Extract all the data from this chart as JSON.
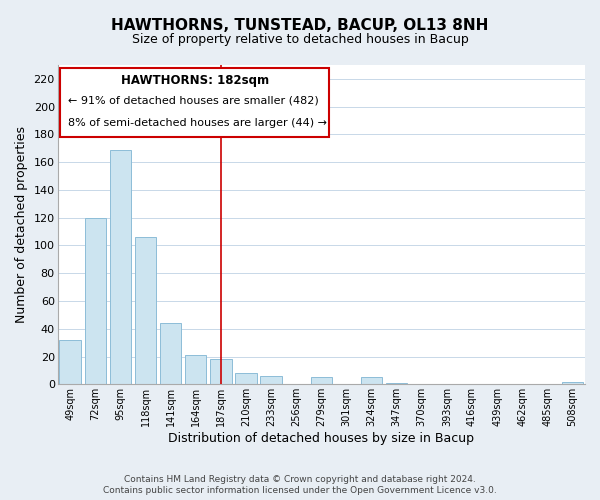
{
  "title": "HAWTHORNS, TUNSTEAD, BACUP, OL13 8NH",
  "subtitle": "Size of property relative to detached houses in Bacup",
  "xlabel": "Distribution of detached houses by size in Bacup",
  "ylabel": "Number of detached properties",
  "bar_labels": [
    "49sqm",
    "72sqm",
    "95sqm",
    "118sqm",
    "141sqm",
    "164sqm",
    "187sqm",
    "210sqm",
    "233sqm",
    "256sqm",
    "279sqm",
    "301sqm",
    "324sqm",
    "347sqm",
    "370sqm",
    "393sqm",
    "416sqm",
    "439sqm",
    "462sqm",
    "485sqm",
    "508sqm"
  ],
  "bar_heights": [
    32,
    120,
    169,
    106,
    44,
    21,
    18,
    8,
    6,
    0,
    5,
    0,
    5,
    1,
    0,
    0,
    0,
    0,
    0,
    0,
    2
  ],
  "bar_color": "#cce4f0",
  "bar_edge_color": "#8dbdd8",
  "vline_x": 6,
  "vline_color": "#cc0000",
  "ylim": [
    0,
    230
  ],
  "yticks": [
    0,
    20,
    40,
    60,
    80,
    100,
    120,
    140,
    160,
    180,
    200,
    220
  ],
  "annotation_title": "HAWTHORNS: 182sqm",
  "annotation_line1": "← 91% of detached houses are smaller (482)",
  "annotation_line2": "8% of semi-detached houses are larger (44) →",
  "footnote1": "Contains HM Land Registry data © Crown copyright and database right 2024.",
  "footnote2": "Contains public sector information licensed under the Open Government Licence v3.0.",
  "background_color": "#e8eef4",
  "plot_background": "#ffffff",
  "grid_color": "#c8d8e8"
}
